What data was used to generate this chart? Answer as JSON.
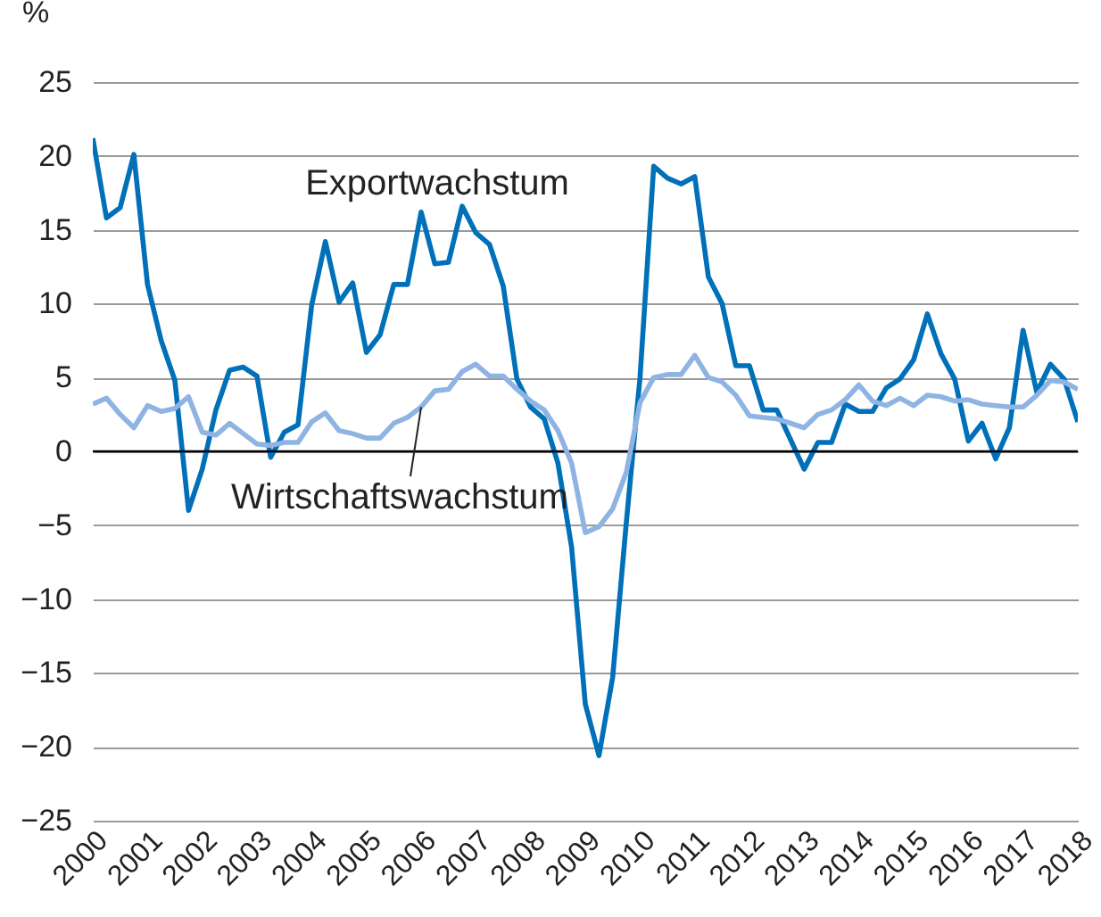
{
  "chart_data": {
    "type": "line",
    "ylabel": "%",
    "x": [
      2000,
      2000.25,
      2000.5,
      2000.75,
      2001,
      2001.25,
      2001.5,
      2001.75,
      2002,
      2002.25,
      2002.5,
      2002.75,
      2003,
      2003.25,
      2003.5,
      2003.75,
      2004,
      2004.25,
      2004.5,
      2004.75,
      2005,
      2005.25,
      2005.5,
      2005.75,
      2006,
      2006.25,
      2006.5,
      2006.75,
      2007,
      2007.25,
      2007.5,
      2007.75,
      2008,
      2008.25,
      2008.5,
      2008.75,
      2009,
      2009.25,
      2009.5,
      2009.75,
      2010,
      2010.25,
      2010.5,
      2010.75,
      2011,
      2011.25,
      2011.5,
      2011.75,
      2012,
      2012.25,
      2012.5,
      2012.75,
      2013,
      2013.25,
      2013.5,
      2013.75,
      2014,
      2014.25,
      2014.5,
      2014.75,
      2015,
      2015.25,
      2015.5,
      2015.75,
      2016,
      2016.25,
      2016.5,
      2016.75,
      2017,
      2017.25,
      2017.5,
      2017.75,
      2018
    ],
    "series": [
      {
        "name": "Exportwachstum",
        "color": "#0070b8",
        "values": [
          21.2,
          15.8,
          16.5,
          20.1,
          11.3,
          7.5,
          4.8,
          -4.0,
          -1.2,
          2.8,
          5.5,
          5.7,
          5.1,
          -0.4,
          1.3,
          1.8,
          9.9,
          14.2,
          10.1,
          11.4,
          6.7,
          7.9,
          11.3,
          11.3,
          16.2,
          12.7,
          12.8,
          16.6,
          14.8,
          14.0,
          11.2,
          4.9,
          3.0,
          2.2,
          -0.8,
          -6.5,
          -17.1,
          -20.6,
          -15.3,
          -4.8,
          5.0,
          19.3,
          18.5,
          18.1,
          18.6,
          11.8,
          10.0,
          5.8,
          5.8,
          2.8,
          2.8,
          0.8,
          -1.2,
          0.6,
          0.6,
          3.2,
          2.7,
          2.7,
          4.3,
          4.9,
          6.2,
          9.3,
          6.6,
          4.9,
          0.7,
          1.9,
          -0.5,
          1.6,
          8.2,
          4.0,
          5.9,
          4.9,
          2.0
        ]
      },
      {
        "name": "Wirtschaftswachstum",
        "color": "#8fb4e3",
        "values": [
          3.2,
          3.6,
          2.5,
          1.6,
          3.1,
          2.7,
          2.9,
          3.7,
          1.3,
          1.1,
          1.9,
          1.2,
          0.5,
          0.4,
          0.6,
          0.6,
          2.0,
          2.6,
          1.4,
          1.2,
          0.9,
          0.9,
          1.9,
          2.3,
          3.0,
          4.1,
          4.2,
          5.4,
          5.9,
          5.1,
          5.1,
          4.2,
          3.4,
          2.8,
          1.4,
          -0.8,
          -5.5,
          -5.1,
          -3.9,
          -1.4,
          3.3,
          5.0,
          5.2,
          5.2,
          6.5,
          5.0,
          4.7,
          3.8,
          2.4,
          2.3,
          2.2,
          1.9,
          1.6,
          2.5,
          2.8,
          3.5,
          4.5,
          3.4,
          3.1,
          3.6,
          3.1,
          3.8,
          3.7,
          3.4,
          3.5,
          3.2,
          3.1,
          3.0,
          3.0,
          3.8,
          4.8,
          4.7,
          4.2
        ]
      }
    ],
    "xlim": [
      2000,
      2018
    ],
    "xticks": [
      2000,
      2001,
      2002,
      2003,
      2004,
      2005,
      2006,
      2007,
      2008,
      2009,
      2010,
      2011,
      2012,
      2013,
      2014,
      2015,
      2016,
      2017,
      2018
    ],
    "ylim": [
      -25,
      25
    ],
    "yticks": [
      -25,
      -20,
      -15,
      -10,
      -5,
      0,
      5,
      10,
      15,
      20,
      25
    ],
    "grid": "y",
    "marker": "none",
    "line_style": "solid",
    "ref_lines": [
      {
        "axis": "y",
        "value": 0,
        "color": "#000000"
      }
    ]
  }
}
